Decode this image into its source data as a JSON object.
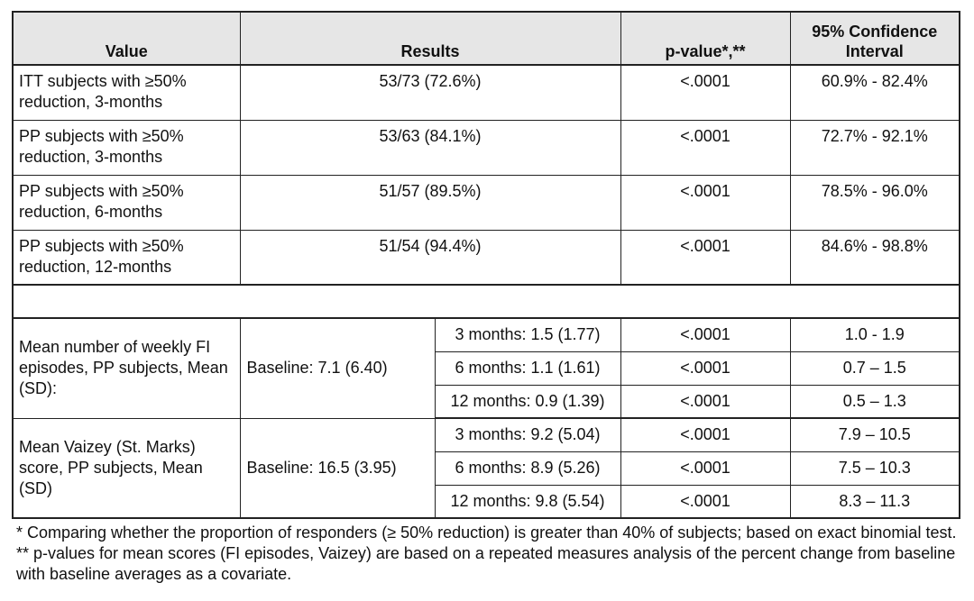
{
  "table": {
    "headers": {
      "value": "Value",
      "results": "Results",
      "pvalue": "p-value*,**",
      "ci_line1": "95% Confidence",
      "ci_line2": "Interval"
    },
    "proportion_rows": [
      {
        "label": "ITT subjects with ≥50% reduction, 3-months",
        "result": "53/73 (72.6%)",
        "p": "<.0001",
        "ci": "60.9% - 82.4%"
      },
      {
        "label": "PP subjects with ≥50% reduction, 3-months",
        "result": "53/63 (84.1%)",
        "p": "<.0001",
        "ci": "72.7% - 92.1%"
      },
      {
        "label": "PP subjects with ≥50% reduction, 6-months",
        "result": "51/57 (89.5%)",
        "p": "<.0001",
        "ci": "78.5% - 96.0%"
      },
      {
        "label": "PP subjects with ≥50% reduction, 12-months",
        "result": "51/54 (94.4%)",
        "p": "<.0001",
        "ci": "84.6% - 98.8%"
      }
    ],
    "fi_group": {
      "label": "Mean number of weekly FI episodes, PP subjects, Mean (SD):",
      "baseline": "Baseline:  7.1 (6.40)",
      "rows": [
        {
          "time": "3 months: 1.5 (1.77)",
          "p": "<.0001",
          "ci": "1.0 - 1.9"
        },
        {
          "time": "6 months: 1.1 (1.61)",
          "p": "<.0001",
          "ci": "0.7 – 1.5"
        },
        {
          "time": "12 months: 0.9 (1.39)",
          "p": "<.0001",
          "ci": "0.5 – 1.3"
        }
      ]
    },
    "vaizey_group": {
      "label": "Mean Vaizey (St. Marks) score, PP subjects, Mean (SD)",
      "baseline": "Baseline: 16.5 (3.95)",
      "rows": [
        {
          "time": "3 months: 9.2 (5.04)",
          "p": "<.0001",
          "ci": "7.9 – 10.5"
        },
        {
          "time": "6 months: 8.9 (5.26)",
          "p": "<.0001",
          "ci": "7.5 – 10.3"
        },
        {
          "time": "12 months: 9.8 (5.54)",
          "p": "<.0001",
          "ci": "8.3 – 11.3"
        }
      ]
    }
  },
  "footnote": "* Comparing whether the proportion of responders (≥ 50% reduction) is greater than 40% of subjects; based on exact binomial test. ** p-values for mean scores (FI episodes, Vaizey) are based on a repeated measures analysis of the percent change from baseline with baseline averages as a covariate."
}
